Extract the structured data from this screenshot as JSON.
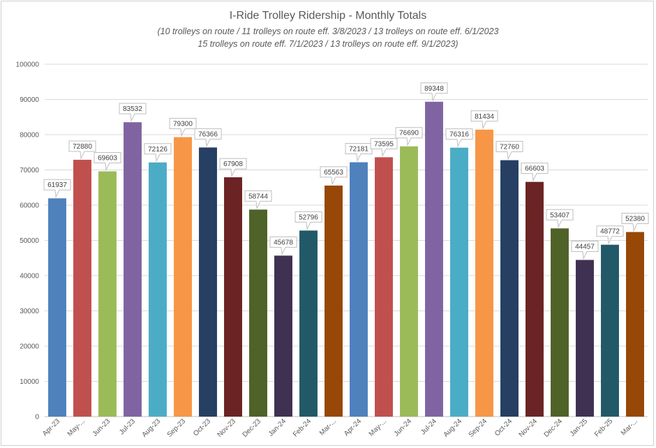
{
  "chart_data": {
    "type": "bar",
    "title": "I-Ride Trolley Ridership - Monthly Totals",
    "subtitle": [
      "(10 trolleys on route / 11 trolleys on route eff. 3/8/2023 / 13 trolleys on route eff. 6/1/2023",
      "15 trolleys on route eff. 7/1/2023 / 13 trolleys on route eff. 9/1/2023)"
    ],
    "xlabel": "",
    "ylabel": "",
    "ylim": [
      0,
      100000
    ],
    "yticks": [
      "0",
      "10000",
      "20000",
      "30000",
      "40000",
      "50000",
      "60000",
      "70000",
      "80000",
      "90000",
      "100000"
    ],
    "grid": true,
    "categories": [
      "Apr-23",
      "May-...",
      "Jun-23",
      "Jul-23",
      "Aug-23",
      "Sep-23",
      "Oct-23",
      "Nov-23",
      "Dec-23",
      "Jan-24",
      "Feb-24",
      "Mar-...",
      "Apr-24",
      "May-...",
      "Jun-24",
      "Jul-24",
      "Aug-24",
      "Sep-24",
      "Oct-24",
      "Nov-24",
      "Dec-24",
      "Jan-25",
      "Feb-25",
      "Mar-..."
    ],
    "values": [
      61937,
      72880,
      69603,
      83532,
      72126,
      79300,
      76366,
      67908,
      58744,
      45678,
      52796,
      65563,
      72181,
      73595,
      76690,
      89348,
      76316,
      81434,
      72760,
      66603,
      53407,
      44457,
      48772,
      52380
    ],
    "colors": [
      "#4f81bd",
      "#c0504d",
      "#9bbb59",
      "#8064a2",
      "#4bacc6",
      "#f79646",
      "#263f63",
      "#6b2324",
      "#4f6228",
      "#3f3151",
      "#215968",
      "#974706",
      "#4f81bd",
      "#c0504d",
      "#9bbb59",
      "#8064a2",
      "#4bacc6",
      "#f79646",
      "#263f63",
      "#6b2324",
      "#4f6228",
      "#3f3151",
      "#215968",
      "#974706"
    ]
  }
}
